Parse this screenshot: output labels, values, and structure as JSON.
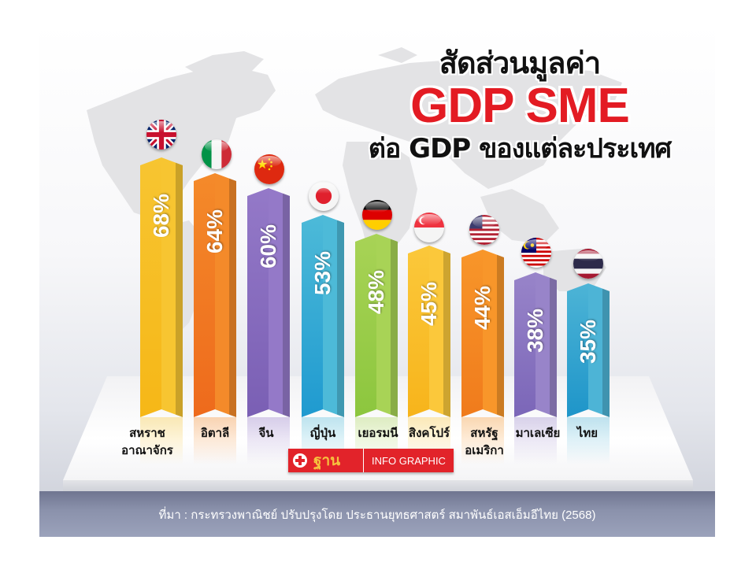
{
  "title": {
    "line1": "สัดส่วนมูลค่า",
    "line2": "GDP SME",
    "line3": "ต่อ GDP ของแต่ละประเทศ"
  },
  "source": "ที่มา : กระทรวงพาณิชย์ ปรับปรุงโดย ประธานยุทธศาสตร์ สมาพันธ์เอสเอ็มอีไทย (2568)",
  "logo": {
    "brand": "ฐาน",
    "tagline": "INFO GRAPHIC"
  },
  "colors": {
    "title_accent": "#e31b23",
    "logo_red": "#e2232a",
    "footer_band": "#8a91ab"
  },
  "chart_data": {
    "type": "bar",
    "title": "สัดส่วนมูลค่า GDP SME ต่อ GDP ของแต่ละประเทศ",
    "xlabel": "",
    "ylabel": "",
    "unit": "%",
    "ylim": [
      0,
      100
    ],
    "grid": false,
    "legend": "none",
    "categories": [
      "สหราชอาณาจักร",
      "อิตาลี",
      "จีน",
      "ญี่ปุ่น",
      "เยอรมนี",
      "สิงคโปร์",
      "สหรัฐอเมริกา",
      "มาเลเซีย",
      "ไทย"
    ],
    "values": [
      68,
      64,
      60,
      53,
      48,
      45,
      44,
      38,
      35
    ],
    "value_labels": [
      "68%",
      "64%",
      "60%",
      "53%",
      "48%",
      "45%",
      "44%",
      "38%",
      "35%"
    ],
    "flags": [
      "uk-flag",
      "italy-flag",
      "china-flag",
      "japan-flag",
      "germany-flag",
      "singapore-flag",
      "usa-flag",
      "malaysia-flag",
      "thailand-flag"
    ]
  },
  "bars": [
    {
      "label_line1": "สหราช",
      "label_line2": "อาณาจักร",
      "value": "68%",
      "color_l": "#f6b717",
      "color_r": "#f7c531"
    },
    {
      "label_line1": "อิตาลี",
      "label_line2": "",
      "value": "64%",
      "color_l": "#ee6a1c",
      "color_r": "#f48a2a"
    },
    {
      "label_line1": "จีน",
      "label_line2": "",
      "value": "60%",
      "color_l": "#7a5fb4",
      "color_r": "#9479c8"
    },
    {
      "label_line1": "ญี่ปุ่น",
      "label_line2": "",
      "value": "53%",
      "color_l": "#1f9ad0",
      "color_r": "#4dbad8"
    },
    {
      "label_line1": "เยอรมนี",
      "label_line2": "",
      "value": "48%",
      "color_l": "#8cc63e",
      "color_r": "#a8d356"
    },
    {
      "label_line1": "สิงคโปร์",
      "label_line2": "",
      "value": "45%",
      "color_l": "#f7b41b",
      "color_r": "#fbc83b"
    },
    {
      "label_line1": "สหรัฐ",
      "label_line2": "อเมริกา",
      "value": "44%",
      "color_l": "#f07b1c",
      "color_r": "#f8962a"
    },
    {
      "label_line1": "มาเลเซีย",
      "label_line2": "",
      "value": "38%",
      "color_l": "#7b66b8",
      "color_r": "#9884c9"
    },
    {
      "label_line1": "ไทย",
      "label_line2": "",
      "value": "35%",
      "color_l": "#1e95c9",
      "color_r": "#4db4d6"
    }
  ]
}
